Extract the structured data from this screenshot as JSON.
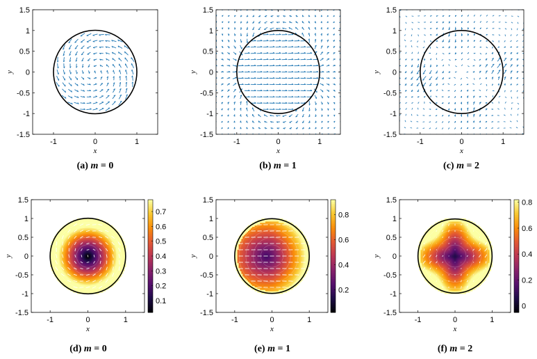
{
  "chart_data": [
    {
      "type": "quiver",
      "caption_label": "(a)",
      "caption_var": "m",
      "caption_eq": " = ",
      "caption_val": "0",
      "m": 0,
      "xlabel": "x",
      "ylabel": "y",
      "xlim": [
        -1.5,
        1.5
      ],
      "ylim": [
        -1.5,
        1.5
      ],
      "xticks": [
        -1,
        0,
        1
      ],
      "yticks": [
        -1.5,
        -1,
        -0.5,
        0,
        0.5,
        1,
        1.5
      ],
      "xtick_labels": [
        "-1",
        "0",
        "1"
      ],
      "ytick_labels": [
        "-1.5",
        "-1",
        "-0.5",
        "0",
        "0.5",
        "1",
        "1.5"
      ],
      "field": "swirl, confined to unit disk",
      "circle_radius": 1
    },
    {
      "type": "quiver",
      "caption_label": "(b)",
      "caption_var": "m",
      "caption_eq": " = ",
      "caption_val": "1",
      "m": 1,
      "xlabel": "x",
      "ylabel": "y",
      "xlim": [
        -1.5,
        1.5
      ],
      "ylim": [
        -1.5,
        1.5
      ],
      "xticks": [
        -1,
        0,
        1
      ],
      "yticks": [
        -1.5,
        -1,
        -0.5,
        0,
        0.5,
        1,
        1.5
      ],
      "xtick_labels": [
        "-1",
        "0",
        "1"
      ],
      "ytick_labels": [
        "-1.5",
        "-1",
        "-0.5",
        "0",
        "0.5",
        "1",
        "1.5"
      ],
      "field": "uniform horizontal inside disk, dipole outside",
      "circle_radius": 1
    },
    {
      "type": "quiver",
      "caption_label": "(c)",
      "caption_var": "m",
      "caption_eq": " = ",
      "caption_val": "2",
      "m": 2,
      "xlabel": "x",
      "ylabel": "y",
      "xlim": [
        -1.5,
        1.5
      ],
      "ylim": [
        -1.5,
        1.5
      ],
      "xticks": [
        -1,
        0,
        1
      ],
      "yticks": [
        -1.5,
        -1,
        -0.5,
        0,
        0.5,
        1,
        1.5
      ],
      "xtick_labels": [
        "-1",
        "0",
        "1"
      ],
      "ytick_labels": [
        "-1.5",
        "-1",
        "-0.5",
        "0",
        "0.5",
        "1",
        "1.5"
      ],
      "field": "quadrupole vortices",
      "circle_radius": 1
    },
    {
      "type": "heatmap",
      "caption_label": "(d)",
      "caption_var": "m",
      "caption_eq": " = ",
      "caption_val": "0",
      "m": 0,
      "xlabel": "x",
      "ylabel": "y",
      "xlim": [
        -1.5,
        1.5
      ],
      "ylim": [
        -1.5,
        1.5
      ],
      "xticks": [
        -1,
        0,
        1
      ],
      "yticks": [
        -1.5,
        -1,
        -0.5,
        0,
        0.5,
        1,
        1.5
      ],
      "xtick_labels": [
        "-1",
        "0",
        "1"
      ],
      "ytick_labels": [
        "-1.5",
        "-1",
        "-0.5",
        "0",
        "0.5",
        "1",
        "1.5"
      ],
      "colormap": "inferno",
      "clim": [
        0.02,
        0.78
      ],
      "cticks": [
        0.1,
        0.2,
        0.3,
        0.4,
        0.5,
        0.6,
        0.7
      ],
      "ctick_labels": [
        "0.1",
        "0.2",
        "0.3",
        "0.4",
        "0.5",
        "0.6",
        "0.7"
      ],
      "circle_radius": 1
    },
    {
      "type": "heatmap",
      "caption_label": "(e)",
      "caption_var": "m",
      "caption_eq": " = ",
      "caption_val": "1",
      "m": 1,
      "xlabel": "x",
      "ylabel": "y",
      "xlim": [
        -1.5,
        1.5
      ],
      "ylim": [
        -1.5,
        1.5
      ],
      "xticks": [
        -1,
        0,
        1
      ],
      "yticks": [
        -1.5,
        -1,
        -0.5,
        0,
        0.5,
        1,
        1.5
      ],
      "xtick_labels": [
        "-1",
        "0",
        "1"
      ],
      "ytick_labels": [
        "-1.5",
        "-1",
        "-0.5",
        "0",
        "0.5",
        "1",
        "1.5"
      ],
      "colormap": "inferno",
      "clim": [
        0.02,
        0.92
      ],
      "cticks": [
        0.2,
        0.4,
        0.6,
        0.8
      ],
      "ctick_labels": [
        "0.2",
        "0.4",
        "0.6",
        "0.8"
      ],
      "circle_radius": 1
    },
    {
      "type": "heatmap",
      "caption_label": "(f)",
      "caption_var": "m",
      "caption_eq": " = ",
      "caption_val": "2",
      "m": 2,
      "xlabel": "x",
      "ylabel": "y",
      "xlim": [
        -1.5,
        1.5
      ],
      "ylim": [
        -1.5,
        1.5
      ],
      "xticks": [
        -1,
        0,
        1
      ],
      "yticks": [
        -1.5,
        -1,
        -0.5,
        0,
        0.5,
        1,
        1.5
      ],
      "xtick_labels": [
        "-1",
        "0",
        "1"
      ],
      "ytick_labels": [
        "-1.5",
        "-1",
        "-0.5",
        "0",
        "0.5",
        "1",
        "1.5"
      ],
      "colormap": "inferno",
      "clim": [
        -0.05,
        0.82
      ],
      "cticks": [
        0,
        0.2,
        0.4,
        0.6,
        0.8
      ],
      "ctick_labels": [
        "0",
        "0.2",
        "0.4",
        "0.6",
        "0.8"
      ],
      "circle_radius": 1
    }
  ],
  "colors": {
    "arrow": "#1f77b4",
    "circle": "#000000",
    "overlay_arrow": "#ffffff"
  }
}
